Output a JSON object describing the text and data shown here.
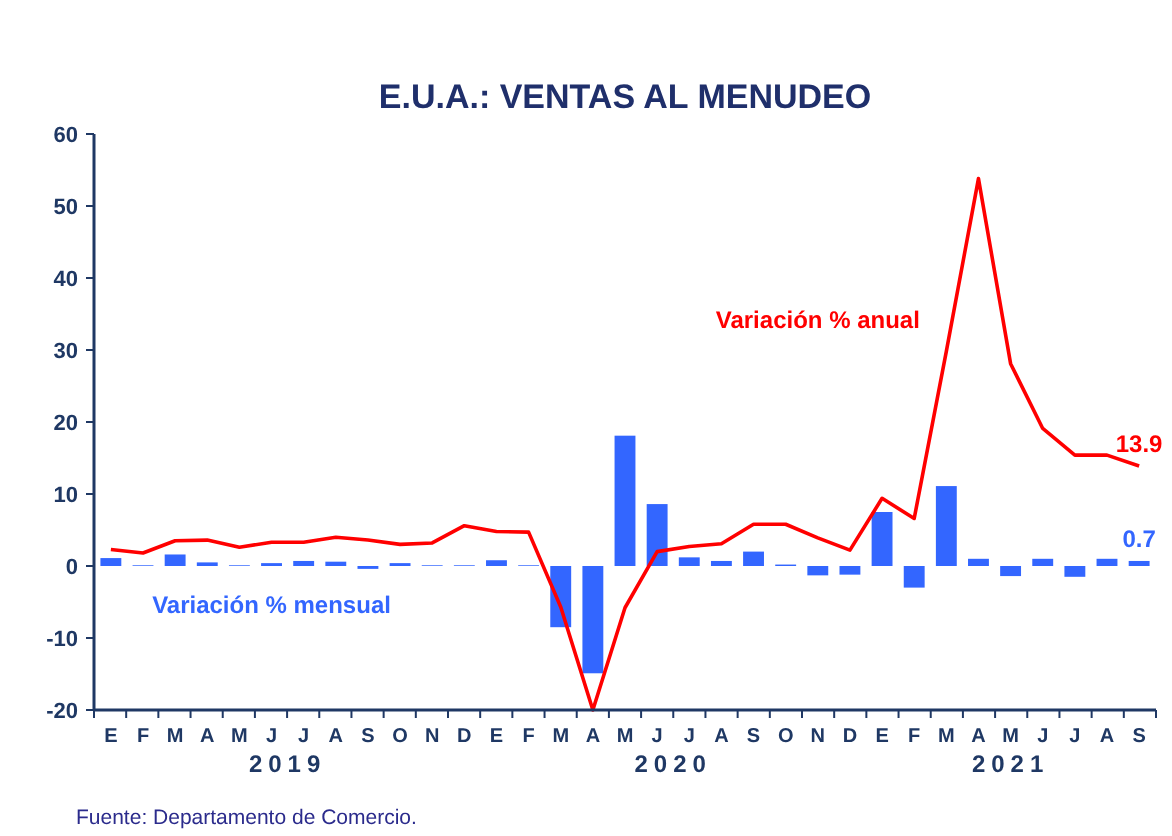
{
  "chart_data": {
    "type": "bar",
    "title": "E.U.A.: VENTAS AL MENUDEO",
    "categories": [
      "E",
      "F",
      "M",
      "A",
      "M",
      "J",
      "J",
      "A",
      "S",
      "O",
      "N",
      "D",
      "E",
      "F",
      "M",
      "A",
      "M",
      "J",
      "J",
      "A",
      "S",
      "O",
      "N",
      "D",
      "E",
      "F",
      "M",
      "A",
      "M",
      "J",
      "J",
      "A",
      "S"
    ],
    "series": [
      {
        "name": "Variación % mensual",
        "color": "#3366ff",
        "values": [
          1.1,
          0.1,
          1.6,
          0.5,
          0.1,
          0.4,
          0.7,
          0.6,
          -0.4,
          0.4,
          0.1,
          0.1,
          0.8,
          0.1,
          -8.5,
          -14.9,
          18.1,
          8.6,
          1.2,
          0.7,
          2.0,
          0.2,
          -1.3,
          -1.2,
          7.5,
          -3.0,
          11.1,
          1.0,
          -1.4,
          1.0,
          -1.5,
          1.0,
          0.7
        ],
        "value_labels": [
          null,
          null,
          null,
          null,
          null,
          null,
          null,
          null,
          null,
          null,
          null,
          null,
          null,
          null,
          null,
          null,
          null,
          null,
          null,
          null,
          null,
          null,
          null,
          null,
          null,
          null,
          null,
          null,
          null,
          null,
          null,
          null,
          "0.7"
        ]
      },
      {
        "name": "Variación % anual",
        "type": "line",
        "color": "#ff0000",
        "values": [
          2.3,
          1.8,
          3.5,
          3.6,
          2.6,
          3.3,
          3.3,
          4.0,
          3.6,
          3.0,
          3.2,
          5.6,
          4.8,
          4.7,
          -5.7,
          -20,
          -5.8,
          2.0,
          2.7,
          3.1,
          5.8,
          5.8,
          3.9,
          2.2,
          9.4,
          6.6,
          29.8,
          53.8,
          28.1,
          19.1,
          15.4,
          15.4,
          13.9
        ],
        "value_labels": [
          null,
          null,
          null,
          null,
          null,
          null,
          null,
          null,
          null,
          null,
          null,
          null,
          null,
          null,
          null,
          null,
          null,
          null,
          null,
          null,
          null,
          null,
          null,
          null,
          null,
          null,
          null,
          null,
          null,
          null,
          null,
          null,
          "13.9"
        ]
      }
    ],
    "ylim": [
      -20,
      60
    ],
    "yticks": [
      -20,
      -10,
      0,
      10,
      20,
      30,
      40,
      50,
      60
    ],
    "grid": false,
    "annotations": [
      "2019",
      "2020",
      "2021",
      "Fuente: Departamento de Comercio."
    ]
  }
}
